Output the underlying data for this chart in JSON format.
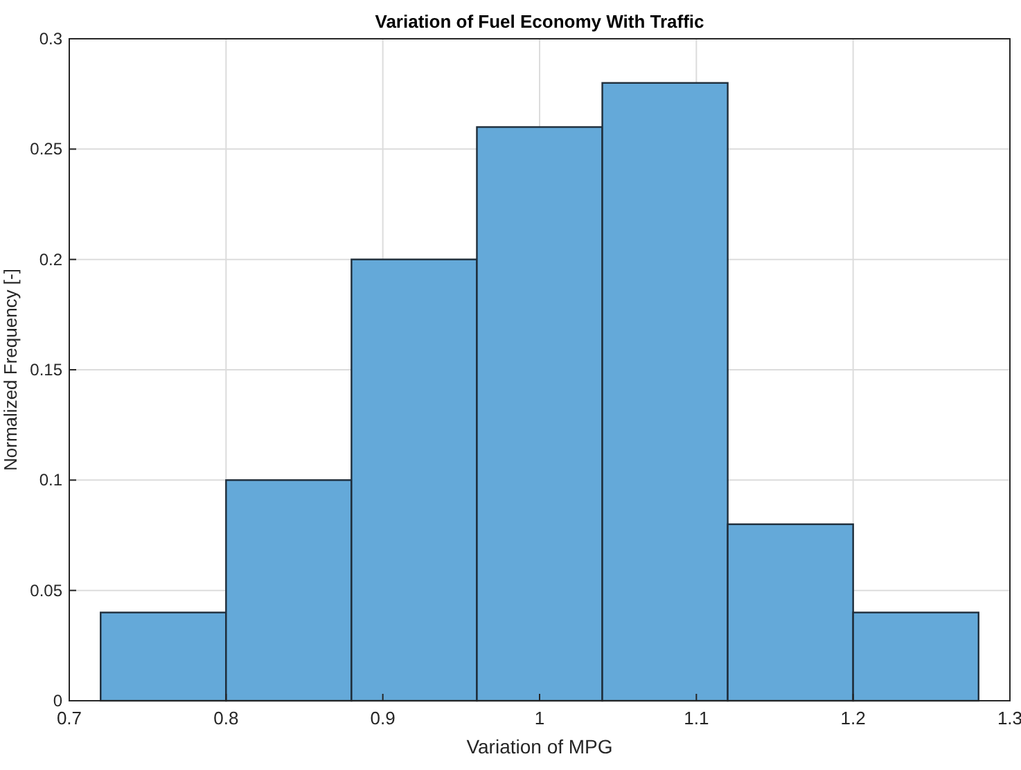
{
  "chart_data": {
    "type": "histogram",
    "title": "Variation of Fuel Economy With Traffic",
    "xlabel": "Variation of MPG",
    "ylabel": "Normalized Frequency [-]",
    "bins": [
      0.72,
      0.8,
      0.88,
      0.96,
      1.04,
      1.12,
      1.2,
      1.28
    ],
    "values": [
      0.04,
      0.1,
      0.2,
      0.26,
      0.28,
      0.08,
      0.04
    ],
    "color": "#64a9d9",
    "xlim": [
      0.7,
      1.3
    ],
    "xticks": [
      0.7,
      0.8,
      0.9,
      1,
      1.1,
      1.2,
      1.3
    ],
    "ylim": [
      0,
      0.3
    ],
    "yticks": [
      0,
      0.05,
      0.1,
      0.15,
      0.2,
      0.25,
      0.3
    ],
    "grid": true
  }
}
